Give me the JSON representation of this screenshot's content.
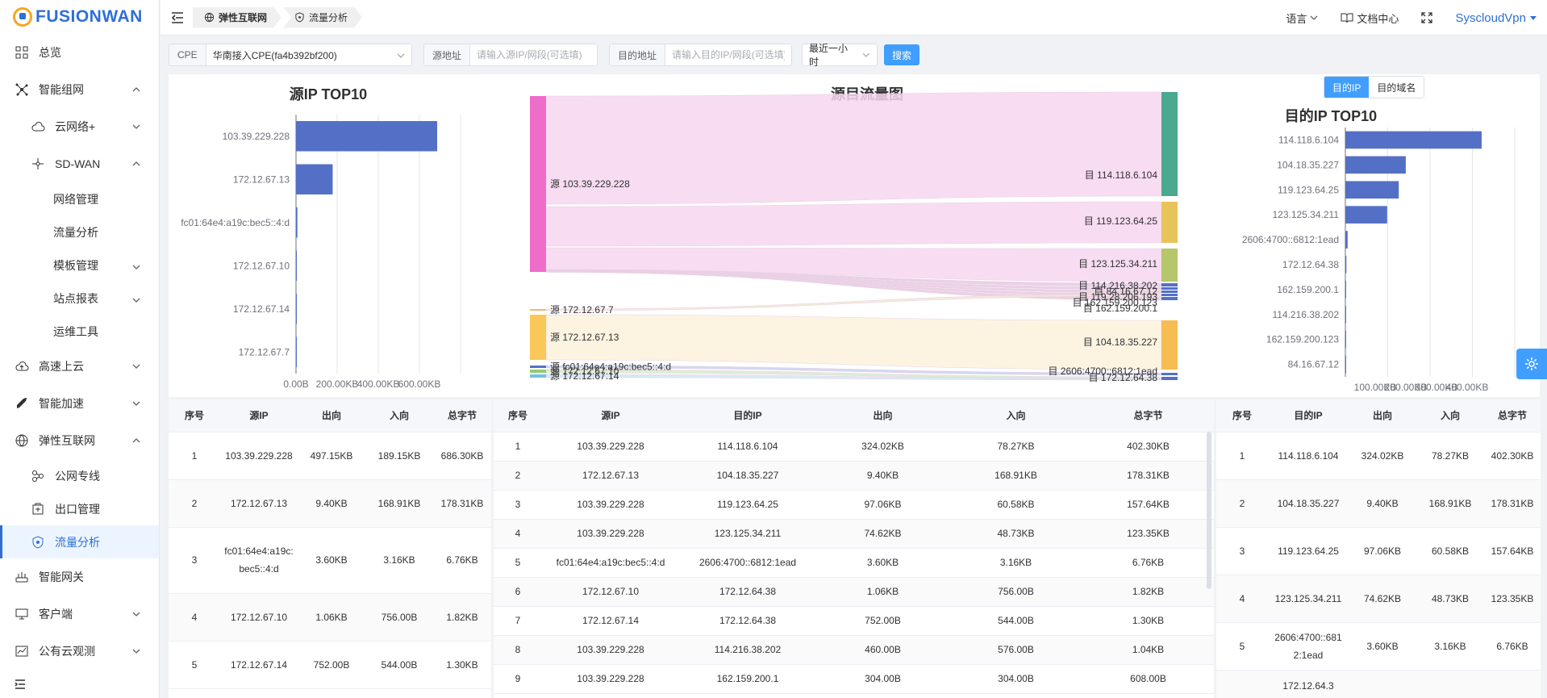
{
  "brand": {
    "name": "FUSIONWAN"
  },
  "sidebar": {
    "items": [
      {
        "label": "总览",
        "icon": "dashboard-icon"
      },
      {
        "label": "智能组网",
        "icon": "network-icon",
        "expanded": true
      },
      {
        "label": "云网络+",
        "icon": "cloud-icon"
      },
      {
        "label": "SD-WAN",
        "icon": "sdwan-icon",
        "expanded": true
      },
      {
        "label": "网络管理"
      },
      {
        "label": "流量分析"
      },
      {
        "label": "模板管理"
      },
      {
        "label": "站点报表"
      },
      {
        "label": "运维工具"
      },
      {
        "label": "高速上云",
        "icon": "cloud-upload-icon"
      },
      {
        "label": "智能加速",
        "icon": "rocket-icon"
      },
      {
        "label": "弹性互联网",
        "icon": "globe-icon",
        "expanded": true
      },
      {
        "label": "公网专线",
        "icon": "link-icon"
      },
      {
        "label": "出口管理",
        "icon": "exit-icon"
      },
      {
        "label": "流量分析",
        "icon": "shield-icon",
        "active": true
      },
      {
        "label": "智能网关",
        "icon": "router-icon"
      },
      {
        "label": "客户端",
        "icon": "monitor-icon"
      },
      {
        "label": "公有云观测",
        "icon": "chart-icon"
      }
    ]
  },
  "header": {
    "tabs": [
      {
        "label": "弹性互联网"
      },
      {
        "label": "流量分析"
      }
    ],
    "language": "语言",
    "docs": "文档中心",
    "user": "SyscloudVpn"
  },
  "filters": {
    "cpe_label": "CPE",
    "cpe_value": "华南接入CPE(fa4b392bf200)",
    "src_label": "源地址",
    "src_placeholder": "请输入源IP/网段(可选填)",
    "dst_label": "目的地址",
    "dst_placeholder": "请输入目的IP/网段(可选填)",
    "time_value": "最近一小时",
    "search_label": "搜索"
  },
  "chart_data": [
    {
      "type": "bar",
      "title": "源IP TOP10",
      "orientation": "horizontal",
      "categories": [
        "103.39.229.228",
        "172.12.67.13",
        "fc01:64e4:a19c:bec5::4:d",
        "172.12.67.10",
        "172.12.67.14",
        "172.12.67.7"
      ],
      "values": [
        686.3,
        178.31,
        6.76,
        1.82,
        1.3,
        0.8
      ],
      "value_unit": "KB",
      "xticks": [
        "0.00B",
        "200.00KB",
        "400.00KB",
        "600.00KB"
      ],
      "xlim": [
        0,
        800
      ],
      "color": "#5470c6"
    },
    {
      "type": "sankey",
      "title": "源目流量图",
      "sources": [
        {
          "label": "源 103.39.229.228",
          "color": "#ee6dc8"
        },
        {
          "label": "源 172.12.67.7",
          "color": "#f2b66b"
        },
        {
          "label": "源 172.12.67.13",
          "color": "#fac858"
        },
        {
          "label": "源 fc01:64e4:a19c:bec5::4:d",
          "color": "#5470c6"
        },
        {
          "label": "源 172.12.67.10",
          "color": "#91cc75"
        },
        {
          "label": "源 172.12.67.14",
          "color": "#73c0de"
        }
      ],
      "targets": [
        {
          "label": "目 114.118.6.104",
          "color": "#4aa98f"
        },
        {
          "label": "目 119.123.64.25",
          "color": "#e7c45a"
        },
        {
          "label": "目 123.125.34.211",
          "color": "#b5c66b"
        },
        {
          "label": "目 114.216.38.202",
          "color": "#5470c6"
        },
        {
          "label": "目 84.16.67.12",
          "color": "#5470c6"
        },
        {
          "label": "目 119.28.206.193",
          "color": "#5470c6"
        },
        {
          "label": "目 162.159.200.123",
          "color": "#5470c6"
        },
        {
          "label": "目 162.159.200.1",
          "color": "#5470c6"
        },
        {
          "label": "目 104.18.35.227",
          "color": "#f5bd52"
        },
        {
          "label": "目 2606:4700::6812:1ead",
          "color": "#5470c6"
        },
        {
          "label": "目 172.12.64.38",
          "color": "#5470c6"
        }
      ]
    },
    {
      "type": "bar",
      "title": "目的IP TOP10",
      "orientation": "horizontal",
      "categories": [
        "114.118.6.104",
        "104.18.35.227",
        "119.123.64.25",
        "123.125.34.211",
        "2606:4700::6812:1ead",
        "172.12.64.38",
        "162.159.200.1",
        "114.216.38.202",
        "162.159.200.123",
        "84.16.67.12"
      ],
      "values": [
        402.3,
        178.31,
        157.64,
        123.35,
        6.76,
        3.12,
        0.9,
        1.04,
        0.6,
        0.5
      ],
      "value_unit": "KB",
      "xticks": [
        "100.00KB",
        "200.00KB",
        "300.00KB",
        "400.00KB"
      ],
      "xlim": [
        0,
        500
      ],
      "color": "#5470c6"
    }
  ],
  "dest_toggle": {
    "ip": "目的IP",
    "domain": "目的域名"
  },
  "table_src": {
    "headers": [
      "序号",
      "源IP",
      "出向",
      "入向",
      "总字节"
    ],
    "rows": [
      [
        "1",
        "103.39.229.228",
        "497.15KB",
        "189.15KB",
        "686.30KB"
      ],
      [
        "2",
        "172.12.67.13",
        "9.40KB",
        "168.91KB",
        "178.31KB"
      ],
      [
        "3",
        "fc01:64e4:a19c:bec5::4:d",
        "3.60KB",
        "3.16KB",
        "6.76KB"
      ],
      [
        "4",
        "172.12.67.10",
        "1.06KB",
        "756.00B",
        "1.82KB"
      ],
      [
        "5",
        "172.12.67.14",
        "752.00B",
        "544.00B",
        "1.30KB"
      ]
    ]
  },
  "table_flow": {
    "headers": [
      "序号",
      "源IP",
      "目的IP",
      "出向",
      "入向",
      "总字节"
    ],
    "rows": [
      [
        "1",
        "103.39.229.228",
        "114.118.6.104",
        "324.02KB",
        "78.27KB",
        "402.30KB"
      ],
      [
        "2",
        "172.12.67.13",
        "104.18.35.227",
        "9.40KB",
        "168.91KB",
        "178.31KB"
      ],
      [
        "3",
        "103.39.229.228",
        "119.123.64.25",
        "97.06KB",
        "60.58KB",
        "157.64KB"
      ],
      [
        "4",
        "103.39.229.228",
        "123.125.34.211",
        "74.62KB",
        "48.73KB",
        "123.35KB"
      ],
      [
        "5",
        "fc01:64e4:a19c:bec5::4:d",
        "2606:4700::6812:1ead",
        "3.60KB",
        "3.16KB",
        "6.76KB"
      ],
      [
        "6",
        "172.12.67.10",
        "172.12.64.38",
        "1.06KB",
        "756.00B",
        "1.82KB"
      ],
      [
        "7",
        "172.12.67.14",
        "172.12.64.38",
        "752.00B",
        "544.00B",
        "1.30KB"
      ],
      [
        "8",
        "103.39.229.228",
        "114.216.38.202",
        "460.00B",
        "576.00B",
        "1.04KB"
      ],
      [
        "9",
        "103.39.229.228",
        "162.159.200.1",
        "304.00B",
        "304.00B",
        "608.00B"
      ]
    ]
  },
  "table_dst": {
    "headers": [
      "序号",
      "目的IP",
      "出向",
      "入向",
      "总字节"
    ],
    "rows": [
      [
        "1",
        "114.118.6.104",
        "324.02KB",
        "78.27KB",
        "402.30KB"
      ],
      [
        "2",
        "104.18.35.227",
        "9.40KB",
        "168.91KB",
        "178.31KB"
      ],
      [
        "3",
        "119.123.64.25",
        "97.06KB",
        "60.58KB",
        "157.64KB"
      ],
      [
        "4",
        "123.125.34.211",
        "74.62KB",
        "48.73KB",
        "123.35KB"
      ],
      [
        "5",
        "2606:4700::6812:1ead",
        "3.60KB",
        "3.16KB",
        "6.76KB"
      ],
      [
        "",
        "172.12.64.3",
        "",
        "",
        ""
      ]
    ]
  }
}
